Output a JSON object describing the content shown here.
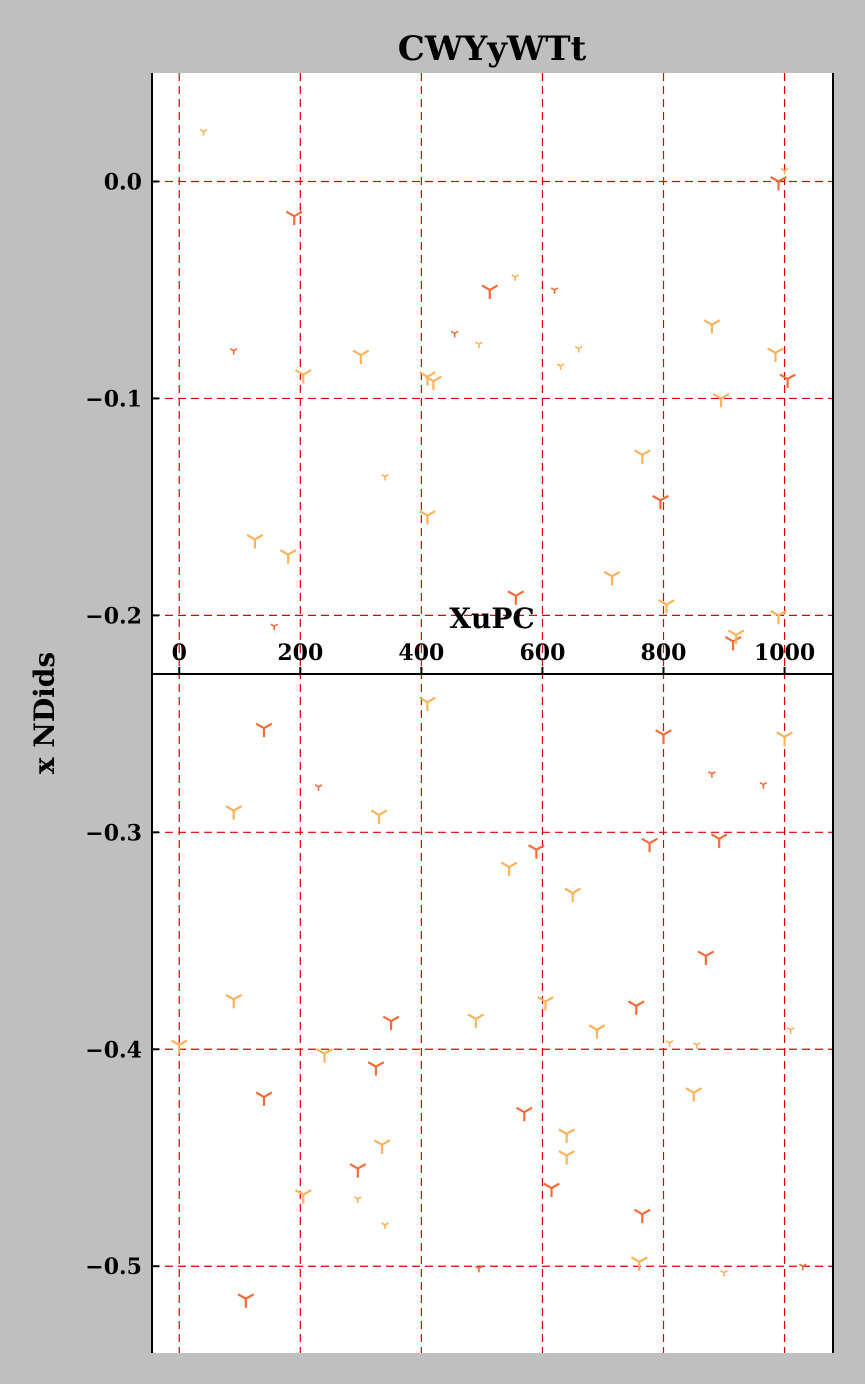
{
  "chart_data": {
    "type": "scatter",
    "title": "CWYyWTt",
    "xlabel": "XuPC",
    "ylabel": "x NDids",
    "xlim": [
      -45,
      1080
    ],
    "ylim": [
      -0.54,
      0.05
    ],
    "x_ticks": [
      0,
      200,
      400,
      600,
      800,
      1000
    ],
    "x_tick_labels": [
      "0",
      "200",
      "400",
      "600",
      "800",
      "1000"
    ],
    "y_ticks": [
      0.0,
      -0.1,
      -0.2,
      -0.3,
      -0.4,
      -0.5
    ],
    "y_tick_labels": [
      "0.0",
      "−0.1",
      "−0.2",
      "−0.3",
      "−0.4",
      "−0.5"
    ],
    "x_axis_position": "middle (y = -0.227)",
    "x_axis_crossing_y": -0.227,
    "grid": true,
    "grid_color": "#e00000",
    "background": "#bfbfbf",
    "plot_background": "#ffffff",
    "marker": "tri_down",
    "series": [
      {
        "color": "#f86c3a",
        "points": [
          [
            190,
            -0.016,
            1
          ],
          [
            513,
            -0.05,
            1
          ],
          [
            620,
            -0.05,
            0
          ],
          [
            455,
            -0.07,
            0
          ],
          [
            90,
            -0.078,
            0
          ],
          [
            1005,
            -0.091,
            1
          ],
          [
            795,
            -0.147,
            1
          ],
          [
            556,
            -0.191,
            1
          ],
          [
            157,
            -0.205,
            0
          ],
          [
            915,
            -0.212,
            1
          ],
          [
            990,
            0.0,
            1
          ],
          [
            140,
            -0.252,
            1
          ],
          [
            800,
            -0.255,
            1
          ],
          [
            230,
            -0.279,
            0
          ],
          [
            880,
            -0.273,
            0
          ],
          [
            965,
            -0.278,
            0
          ],
          [
            590,
            -0.308,
            1
          ],
          [
            777,
            -0.305,
            1
          ],
          [
            892,
            -0.303,
            1
          ],
          [
            870,
            -0.357,
            1
          ],
          [
            350,
            -0.387,
            1
          ],
          [
            755,
            -0.38,
            1
          ],
          [
            325,
            -0.408,
            1
          ],
          [
            140,
            -0.422,
            1
          ],
          [
            570,
            -0.429,
            1
          ],
          [
            295,
            -0.455,
            1
          ],
          [
            615,
            -0.464,
            1
          ],
          [
            765,
            -0.476,
            1
          ],
          [
            495,
            -0.501,
            0
          ],
          [
            1030,
            -0.5,
            0
          ],
          [
            110,
            -0.515,
            1
          ]
        ]
      },
      {
        "color": "#fbb45c",
        "points": [
          [
            40,
            0.023,
            0
          ],
          [
            1000,
            0.005,
            0
          ],
          [
            555,
            -0.044,
            0
          ],
          [
            660,
            -0.077,
            0
          ],
          [
            495,
            -0.075,
            0
          ],
          [
            300,
            -0.08,
            1
          ],
          [
            880,
            -0.066,
            1
          ],
          [
            985,
            -0.079,
            1
          ],
          [
            205,
            -0.089,
            1
          ],
          [
            410,
            -0.09,
            1
          ],
          [
            420,
            -0.092,
            1
          ],
          [
            630,
            -0.085,
            0
          ],
          [
            895,
            -0.1,
            1
          ],
          [
            340,
            -0.136,
            0
          ],
          [
            410,
            -0.154,
            1
          ],
          [
            765,
            -0.126,
            1
          ],
          [
            125,
            -0.165,
            1
          ],
          [
            180,
            -0.172,
            1
          ],
          [
            715,
            -0.182,
            1
          ],
          [
            805,
            -0.195,
            1
          ],
          [
            990,
            -0.2,
            1
          ],
          [
            920,
            -0.209,
            1
          ],
          [
            410,
            -0.24,
            1
          ],
          [
            1000,
            -0.256,
            1
          ],
          [
            90,
            -0.29,
            1
          ],
          [
            330,
            -0.292,
            1
          ],
          [
            545,
            -0.316,
            1
          ],
          [
            650,
            -0.328,
            1
          ],
          [
            90,
            -0.377,
            1
          ],
          [
            490,
            -0.386,
            1
          ],
          [
            605,
            -0.378,
            1
          ],
          [
            690,
            -0.391,
            1
          ],
          [
            1010,
            -0.391,
            0
          ],
          [
            0,
            -0.398,
            1
          ],
          [
            240,
            -0.402,
            1
          ],
          [
            810,
            -0.397,
            0
          ],
          [
            855,
            -0.398,
            0
          ],
          [
            850,
            -0.42,
            1
          ],
          [
            335,
            -0.444,
            1
          ],
          [
            640,
            -0.439,
            1
          ],
          [
            640,
            -0.449,
            1
          ],
          [
            205,
            -0.467,
            1
          ],
          [
            295,
            -0.469,
            0
          ],
          [
            340,
            -0.481,
            0
          ],
          [
            760,
            -0.498,
            1
          ],
          [
            900,
            -0.503,
            0
          ]
        ]
      }
    ]
  }
}
